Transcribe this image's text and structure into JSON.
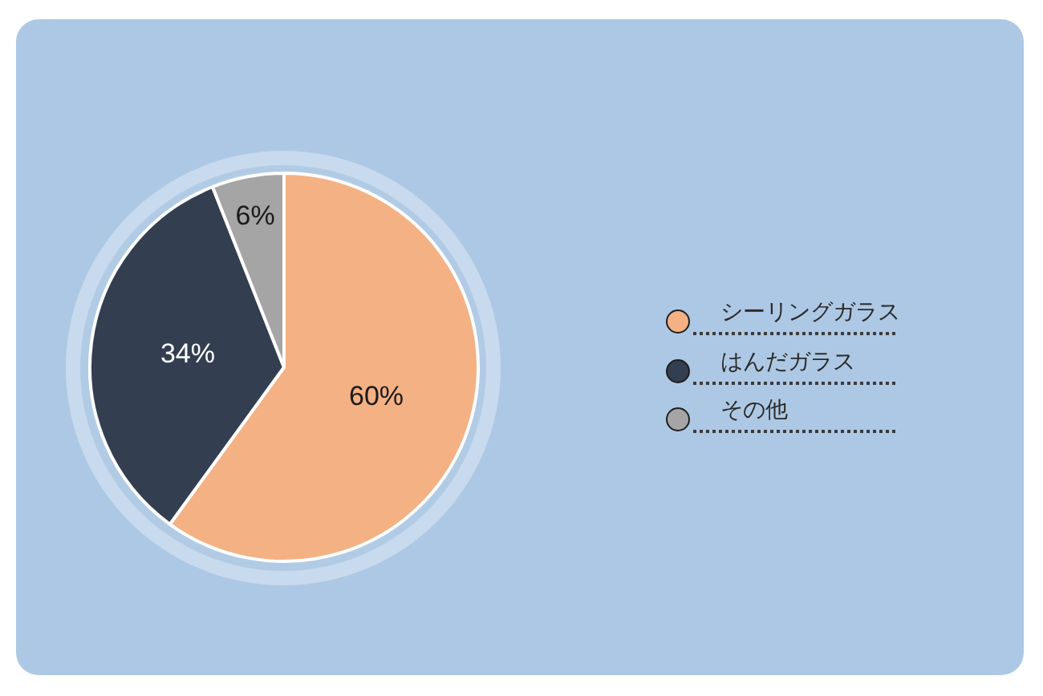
{
  "chart_data": {
    "type": "pie",
    "categories": [
      "シーリングガラス",
      "はんだガラス",
      "その他"
    ],
    "values": [
      60,
      34,
      6
    ],
    "colors": [
      "#f4b183",
      "#333f50",
      "#a5a5a5"
    ],
    "value_labels": [
      "60%",
      "34%",
      "6%"
    ],
    "legend": "right"
  }
}
